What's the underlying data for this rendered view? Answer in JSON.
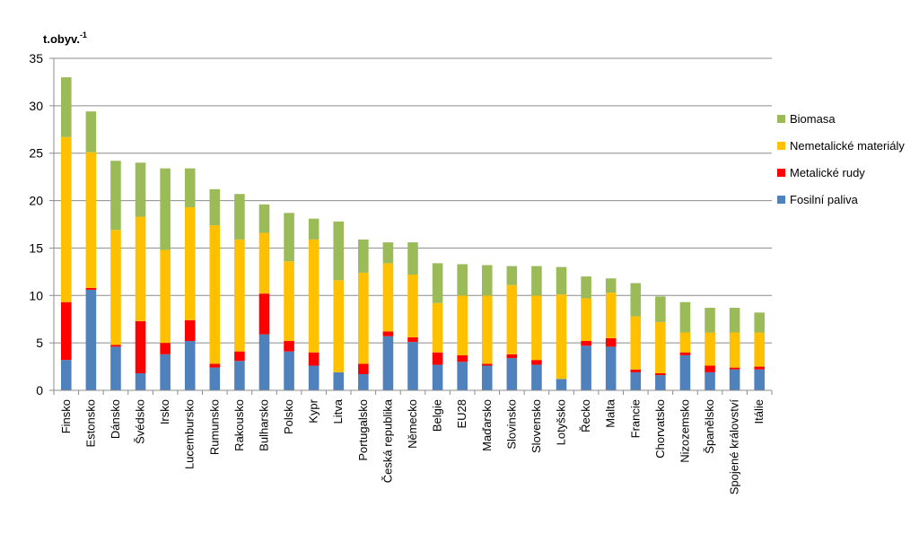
{
  "chart_data": {
    "type": "bar",
    "stacked": true,
    "ylabel": "t.obyv.",
    "ylabel_superscript": "-1",
    "ylim": [
      0,
      35
    ],
    "yticks": [
      0,
      5,
      10,
      15,
      20,
      25,
      30,
      35
    ],
    "grid": true,
    "legend_position": "right",
    "categories": [
      "Finsko",
      "Estonsko",
      "Dánsko",
      "Švédsko",
      "Irsko",
      "Lucembursko",
      "Rumunsko",
      "Rakousko",
      "Bulharsko",
      "Polsko",
      "Kypr",
      "Litva",
      "Portugalsko",
      "Česká republika",
      "Německo",
      "Belgie",
      "EU28",
      "Maďarsko",
      "Slovinsko",
      "Slovensko",
      "Lotyšsko",
      "Řecko",
      "Malta",
      "Francie",
      "Chorvatsko",
      "Nizozemsko",
      "Španělsko",
      "Spojené království",
      "Itálie"
    ],
    "series": [
      {
        "name": "Fosilní paliva",
        "color": "#4F81BD",
        "values": [
          3.2,
          10.6,
          4.6,
          1.8,
          3.8,
          5.2,
          2.4,
          3.1,
          5.9,
          4.1,
          2.6,
          1.9,
          1.7,
          5.7,
          5.1,
          2.7,
          3.0,
          2.6,
          3.4,
          2.7,
          1.2,
          4.7,
          4.6,
          1.9,
          1.6,
          3.7,
          1.9,
          2.2,
          2.2
        ]
      },
      {
        "name": "Metalické rudy",
        "color": "#FF0000",
        "values": [
          6.1,
          0.2,
          0.2,
          5.5,
          1.2,
          2.2,
          0.4,
          1.0,
          4.3,
          1.1,
          1.4,
          0.0,
          1.1,
          0.5,
          0.5,
          1.3,
          0.7,
          0.2,
          0.4,
          0.5,
          0.0,
          0.5,
          0.9,
          0.3,
          0.2,
          0.3,
          0.7,
          0.2,
          0.3
        ]
      },
      {
        "name": "Nemetalické materiály",
        "color": "#FFC000",
        "values": [
          17.4,
          14.3,
          12.1,
          11.0,
          9.8,
          11.9,
          14.6,
          11.8,
          6.4,
          8.4,
          11.9,
          9.7,
          9.6,
          7.2,
          6.6,
          5.2,
          6.3,
          7.2,
          7.3,
          6.8,
          8.9,
          4.5,
          4.8,
          5.6,
          5.4,
          2.1,
          3.5,
          3.7,
          3.6
        ]
      },
      {
        "name": "Biomasa",
        "color": "#9BBB59",
        "values": [
          6.3,
          4.3,
          7.3,
          5.7,
          8.6,
          4.1,
          3.8,
          4.8,
          3.0,
          5.1,
          2.2,
          6.2,
          3.5,
          2.2,
          3.4,
          4.2,
          3.3,
          3.2,
          2.0,
          3.1,
          2.9,
          2.3,
          1.5,
          3.5,
          2.7,
          3.2,
          2.6,
          2.6,
          2.1
        ]
      }
    ]
  }
}
